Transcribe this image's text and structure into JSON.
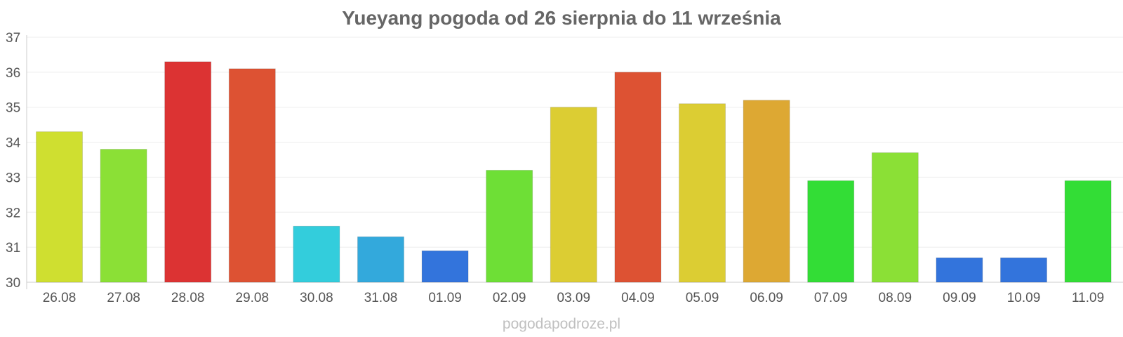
{
  "chart_data": {
    "type": "bar",
    "title": "Yueyang pogoda od 26 sierpnia do 11 września",
    "xlabel": "",
    "ylabel": "",
    "ylim": [
      30,
      37
    ],
    "yticks": [
      "30",
      "31",
      "32",
      "33",
      "34",
      "35",
      "36",
      "37"
    ],
    "grid": true,
    "legend": "none",
    "categories": [
      "26.08",
      "27.08",
      "28.08",
      "29.08",
      "30.08",
      "31.08",
      "01.09",
      "02.09",
      "03.09",
      "04.09",
      "05.09",
      "06.09",
      "07.09",
      "08.09",
      "09.09",
      "10.09",
      "11.09"
    ],
    "values": [
      34.3,
      33.8,
      36.3,
      36.1,
      31.6,
      31.3,
      30.9,
      33.2,
      35.0,
      36.0,
      35.1,
      35.2,
      32.9,
      33.7,
      30.7,
      30.7,
      32.9
    ],
    "colors": [
      "#cfdf30",
      "#8be036",
      "#dc3333",
      "#dd5233",
      "#33cddc",
      "#33a9dc",
      "#3374dc",
      "#6edf36",
      "#dccd33",
      "#dd5233",
      "#dccd33",
      "#dda833",
      "#33dd36",
      "#8be036",
      "#3374dc",
      "#3374dc",
      "#33dd36"
    ]
  },
  "watermark": "pogodapodroze.pl"
}
